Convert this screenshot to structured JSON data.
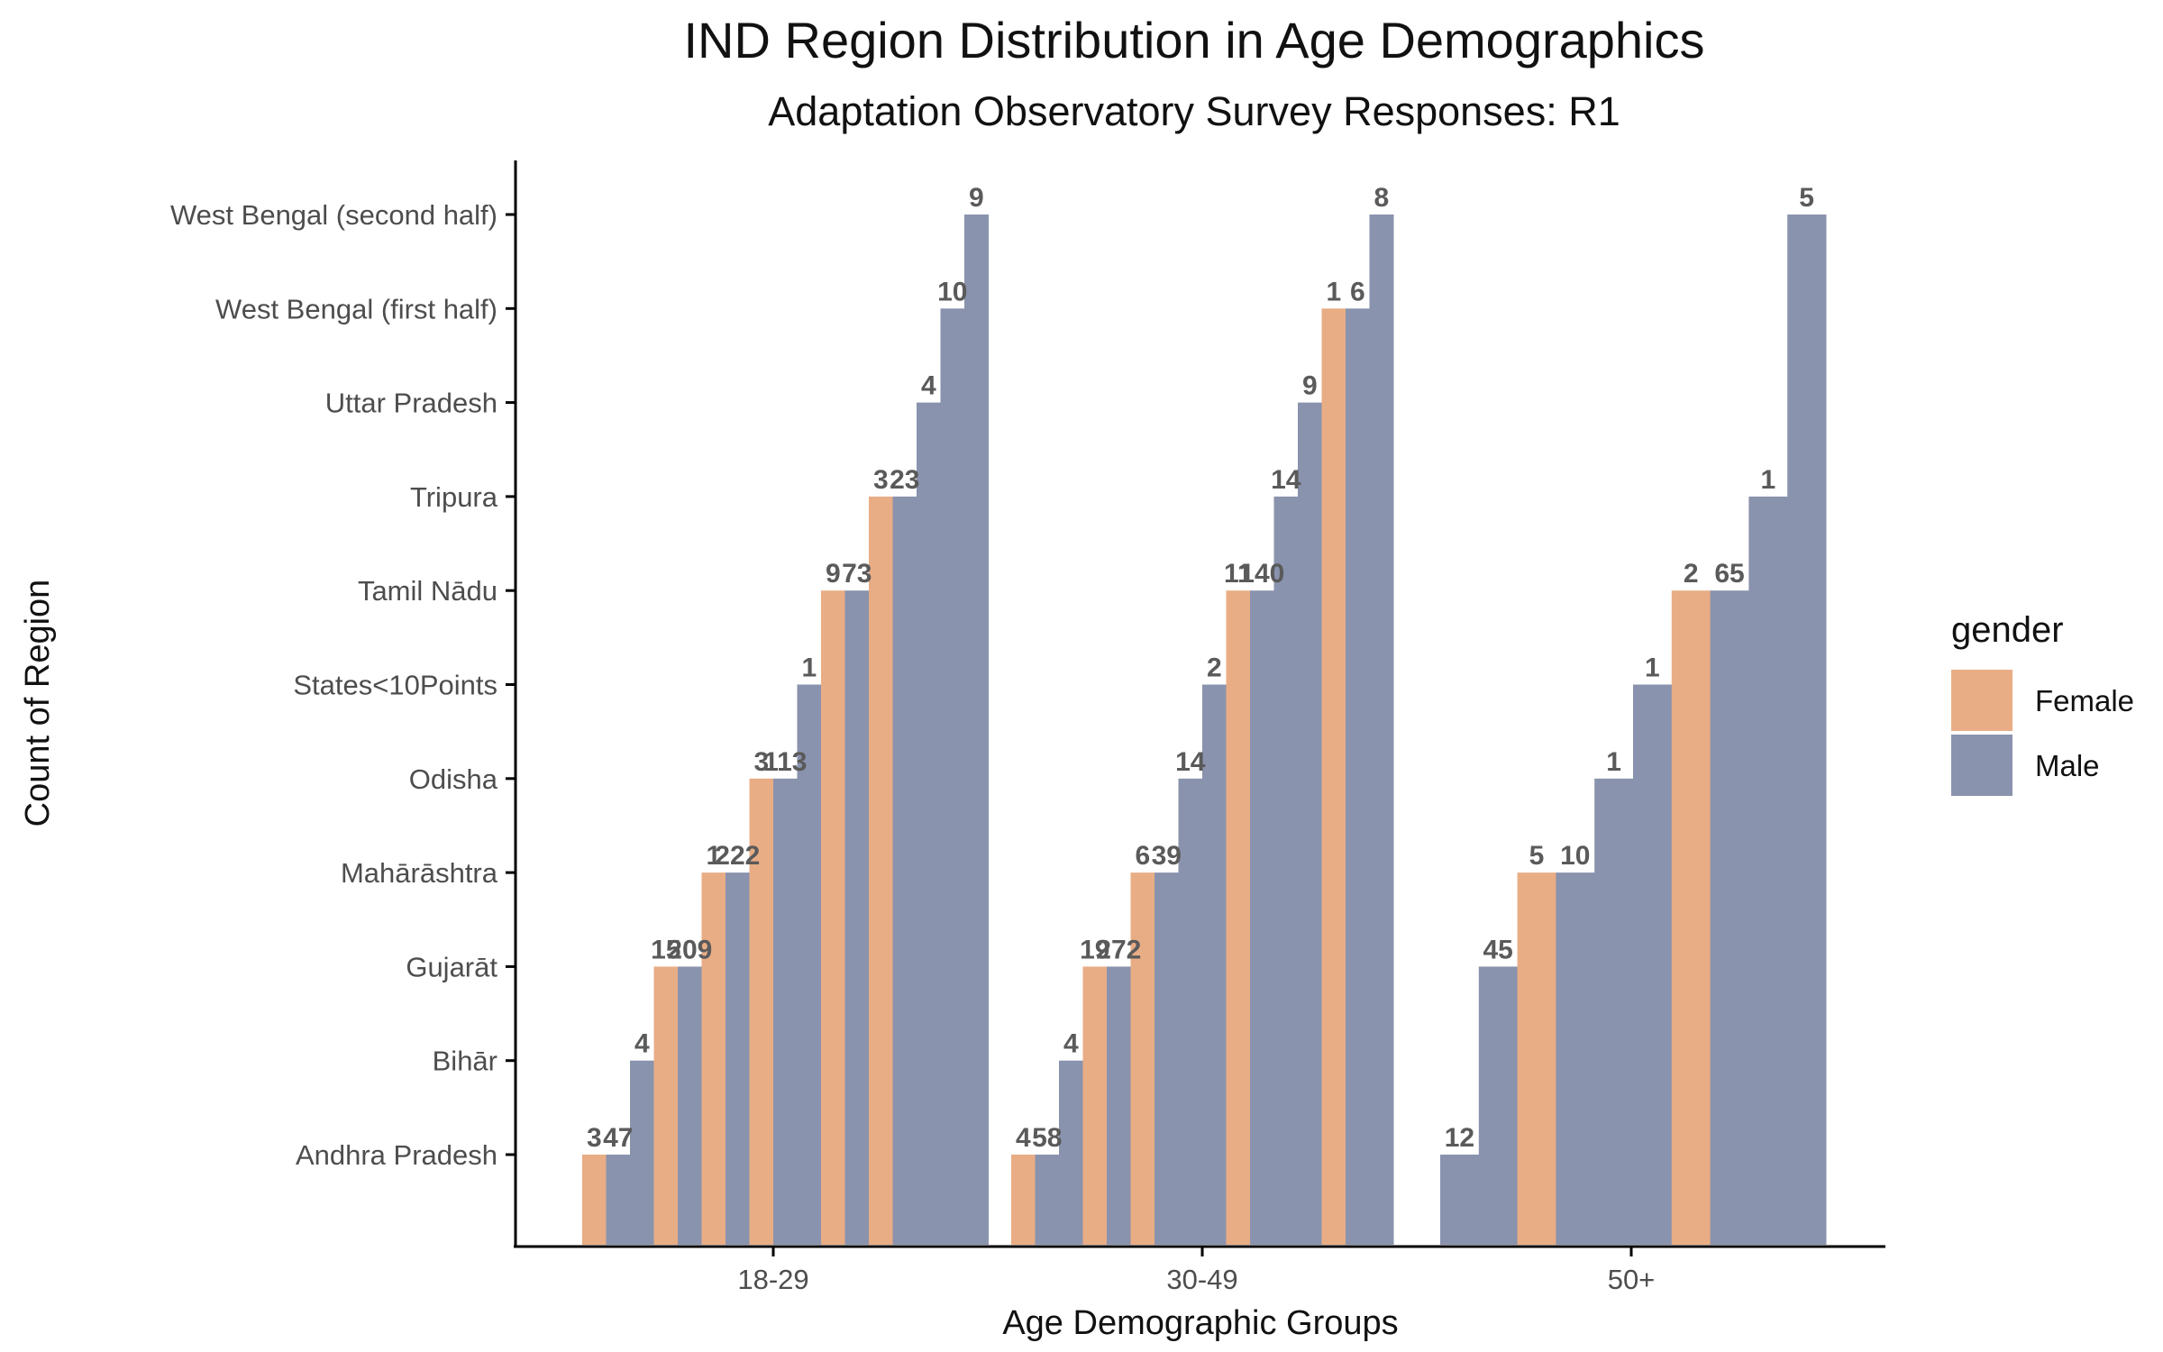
{
  "chart_data": {
    "type": "bar",
    "title": "IND Region Distribution in Age Demographics",
    "subtitle": "Adaptation Observatory Survey Responses: R1",
    "xlabel": "Age Demographic Groups",
    "ylabel": "Count of Region",
    "categories": [
      "18-29",
      "30-49",
      "50+"
    ],
    "regions": [
      "Andhra Pradesh",
      "Bihār",
      "Gujarāt",
      "Mahārāshtra",
      "Odisha",
      "States<10Points",
      "Tamil Nādu",
      "Tripura",
      "Uttar Pradesh",
      "West Bengal  (first half)",
      "West Bengal  (second half)"
    ],
    "legend": {
      "title": "gender",
      "position": "right",
      "entries": [
        "Female",
        "Male"
      ]
    },
    "colors": {
      "Female": "#E8AD85",
      "Male": "#8A93AD"
    },
    "grid": false,
    "groups": [
      {
        "category": "18-29",
        "bars": [
          {
            "region": "Andhra Pradesh",
            "gender": "Female",
            "label": "3"
          },
          {
            "region": "Andhra Pradesh",
            "gender": "Male",
            "label": "47"
          },
          {
            "region": "Bihār",
            "gender": "Male",
            "label": "4"
          },
          {
            "region": "Gujarāt",
            "gender": "Female",
            "label": "15"
          },
          {
            "region": "Gujarāt",
            "gender": "Male",
            "label": "209"
          },
          {
            "region": "Mahārāshtra",
            "gender": "Female",
            "label": "1"
          },
          {
            "region": "Mahārāshtra",
            "gender": "Male",
            "label": "222"
          },
          {
            "region": "Odisha",
            "gender": "Female",
            "label": "3"
          },
          {
            "region": "Odisha",
            "gender": "Male",
            "label": "113"
          },
          {
            "region": "States<10Points",
            "gender": "Male",
            "label": "1"
          },
          {
            "region": "Tamil Nādu",
            "gender": "Female",
            "label": "9"
          },
          {
            "region": "Tamil Nādu",
            "gender": "Male",
            "label": "73"
          },
          {
            "region": "Tripura",
            "gender": "Female",
            "label": "3"
          },
          {
            "region": "Tripura",
            "gender": "Male",
            "label": "23"
          },
          {
            "region": "Uttar Pradesh",
            "gender": "Male",
            "label": "4"
          },
          {
            "region": "West Bengal  (first half)",
            "gender": "Male",
            "label": "10"
          },
          {
            "region": "West Bengal  (second half)",
            "gender": "Male",
            "label": "9"
          }
        ]
      },
      {
        "category": "30-49",
        "bars": [
          {
            "region": "Andhra Pradesh",
            "gender": "Female",
            "label": "4"
          },
          {
            "region": "Andhra Pradesh",
            "gender": "Male",
            "label": "58"
          },
          {
            "region": "Bihār",
            "gender": "Male",
            "label": "4"
          },
          {
            "region": "Gujarāt",
            "gender": "Female",
            "label": "19"
          },
          {
            "region": "Gujarāt",
            "gender": "Male",
            "label": "272"
          },
          {
            "region": "Mahārāshtra",
            "gender": "Female",
            "label": "6"
          },
          {
            "region": "Mahārāshtra",
            "gender": "Male",
            "label": "39"
          },
          {
            "region": "Odisha",
            "gender": "Male",
            "label": "14"
          },
          {
            "region": "States<10Points",
            "gender": "Male",
            "label": "2"
          },
          {
            "region": "Tamil Nādu",
            "gender": "Female",
            "label": "11"
          },
          {
            "region": "Tamil Nādu",
            "gender": "Male",
            "label": "140"
          },
          {
            "region": "Tripura",
            "gender": "Male",
            "label": "14"
          },
          {
            "region": "Uttar Pradesh",
            "gender": "Male",
            "label": "9"
          },
          {
            "region": "West Bengal  (first half)",
            "gender": "Female",
            "label": "1"
          },
          {
            "region": "West Bengal  (first half)",
            "gender": "Male",
            "label": "6"
          },
          {
            "region": "West Bengal  (second half)",
            "gender": "Male",
            "label": "8"
          }
        ]
      },
      {
        "category": "50+",
        "bars": [
          {
            "region": "Andhra Pradesh",
            "gender": "Male",
            "label": "12"
          },
          {
            "region": "Gujarāt",
            "gender": "Male",
            "label": "45"
          },
          {
            "region": "Mahārāshtra",
            "gender": "Female",
            "label": "5"
          },
          {
            "region": "Mahārāshtra",
            "gender": "Male",
            "label": "10"
          },
          {
            "region": "Odisha",
            "gender": "Male",
            "label": "1"
          },
          {
            "region": "States<10Points",
            "gender": "Male",
            "label": "1"
          },
          {
            "region": "Tamil Nādu",
            "gender": "Female",
            "label": "2"
          },
          {
            "region": "Tamil Nādu",
            "gender": "Male",
            "label": "65"
          },
          {
            "region": "Tripura",
            "gender": "Male",
            "label": "1"
          },
          {
            "region": "West Bengal  (second half)",
            "gender": "Male",
            "label": "5"
          }
        ]
      }
    ]
  }
}
